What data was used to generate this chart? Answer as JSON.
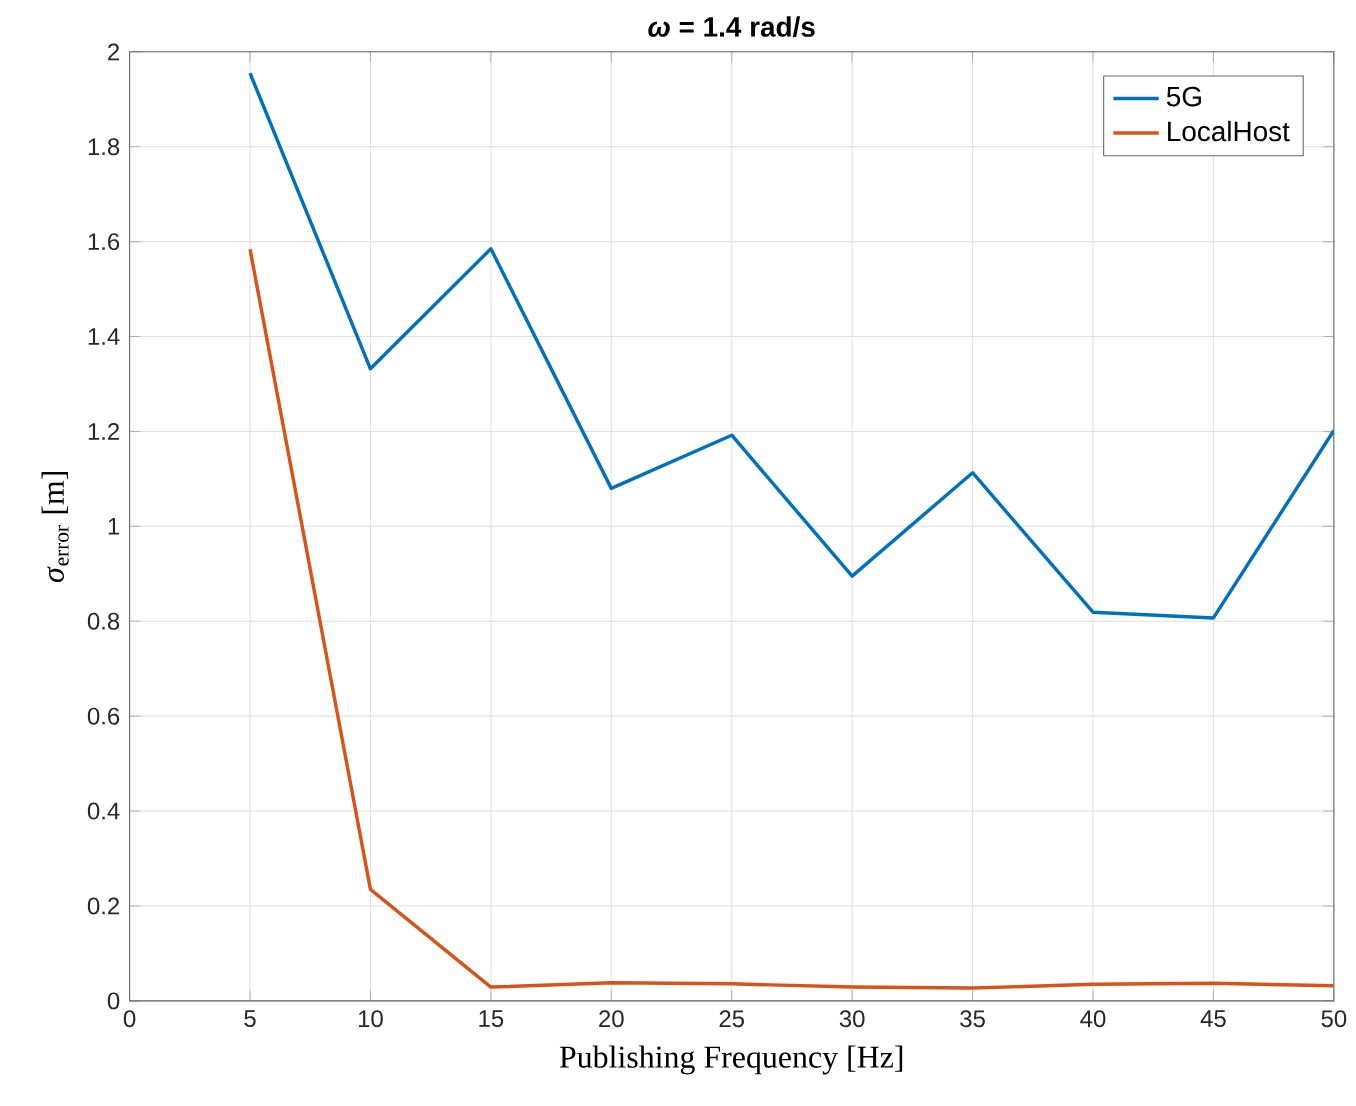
{
  "chart_data": {
    "type": "line",
    "title": "*ω* = 1.4 rad/s",
    "xlabel": "Publishing Frequency [Hz]",
    "ylabel": "*σ*$_{error}$  [m]",
    "x": [
      5,
      10,
      15,
      20,
      25,
      30,
      35,
      40,
      45,
      50
    ],
    "series": [
      {
        "name": "5G",
        "color": "#0072bd",
        "values": [
          1.955,
          1.332,
          1.585,
          1.08,
          1.192,
          0.895,
          1.113,
          0.819,
          0.807,
          1.202
        ]
      },
      {
        "name": "LocalHost",
        "color": "#d95319",
        "values": [
          1.584,
          0.235,
          0.029,
          0.038,
          0.036,
          0.029,
          0.027,
          0.035,
          0.037,
          0.032
        ]
      }
    ],
    "xlim": [
      0,
      50
    ],
    "xticks": [
      0,
      5,
      10,
      15,
      20,
      25,
      30,
      35,
      40,
      45,
      50
    ],
    "ylim": [
      0,
      2
    ],
    "yticks": [
      0,
      0.2,
      0.4,
      0.6,
      0.8,
      1,
      1.2,
      1.4,
      1.6,
      1.8,
      2
    ],
    "grid": true,
    "legend": "top right",
    "marker": "none",
    "line_style": "solid"
  }
}
